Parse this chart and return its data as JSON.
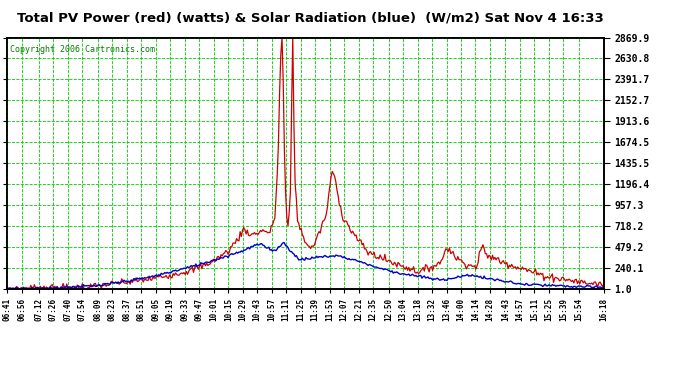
{
  "title": "Total PV Power (red) (watts) & Solar Radiation (blue)  (W/m2) Sat Nov 4 16:33",
  "bg_color": "#ffffff",
  "plot_bg_color": "#ffffff",
  "grid_color": "#00cc00",
  "red_color": "#cc0000",
  "blue_color": "#0000cc",
  "copyright_text": "Copyright 2006 Cartronics.com",
  "yticks": [
    1.0,
    240.1,
    479.2,
    718.2,
    957.3,
    1196.4,
    1435.5,
    1674.5,
    1913.6,
    2152.7,
    2391.7,
    2630.8,
    2869.9
  ],
  "xtick_labels": [
    "06:41",
    "06:56",
    "07:12",
    "07:26",
    "07:40",
    "07:54",
    "08:09",
    "08:23",
    "08:37",
    "08:51",
    "09:05",
    "09:19",
    "09:33",
    "09:47",
    "10:01",
    "10:15",
    "10:29",
    "10:43",
    "10:57",
    "11:11",
    "11:25",
    "11:39",
    "11:53",
    "12:07",
    "12:21",
    "12:35",
    "12:50",
    "13:04",
    "13:18",
    "13:32",
    "13:46",
    "14:00",
    "14:14",
    "14:28",
    "14:43",
    "14:57",
    "15:11",
    "15:25",
    "15:39",
    "15:54",
    "16:18"
  ],
  "ymin": 1.0,
  "ymax": 2869.9
}
